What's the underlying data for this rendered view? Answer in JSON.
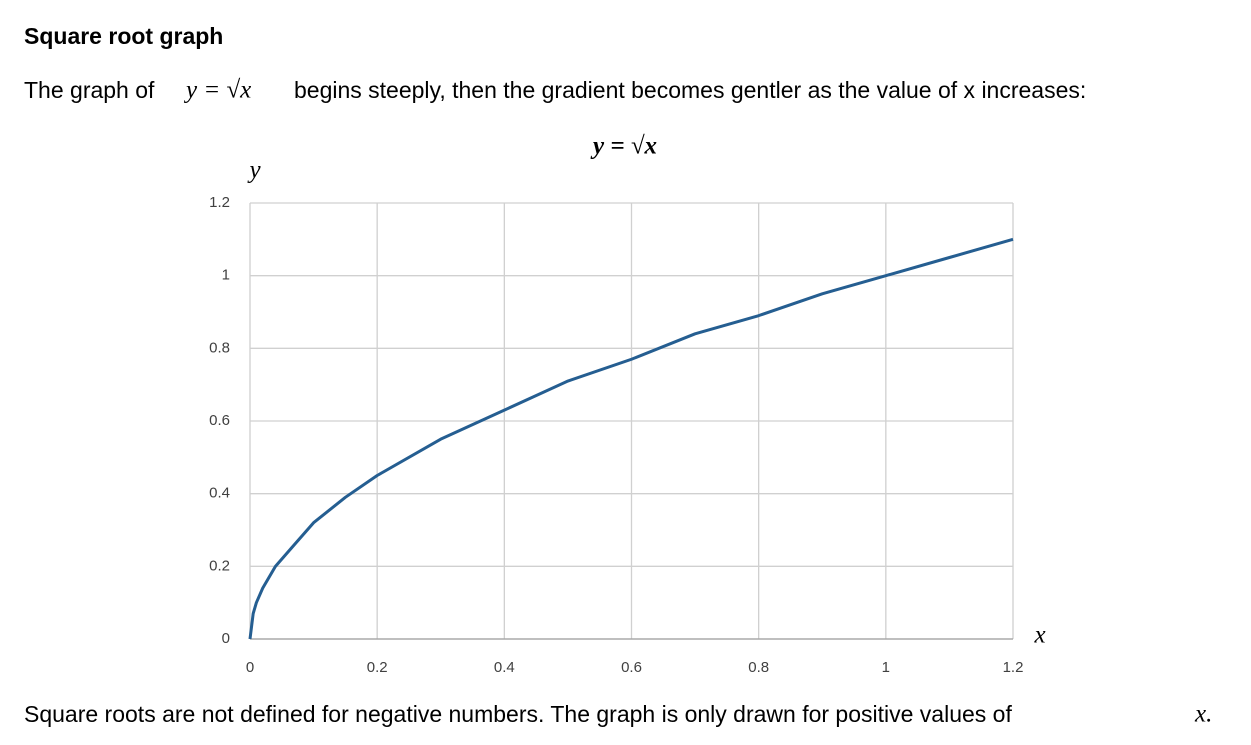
{
  "heading": "Square root graph",
  "intro": {
    "before": "The graph of",
    "math": "y = √x",
    "after": "begins steeply, then the gradient becomes gentler as the value of x increases:"
  },
  "footer": {
    "text": "Square roots are not defined for negative numbers.  The graph is only drawn for positive values of",
    "math": "x."
  },
  "chart_data": {
    "type": "line",
    "title": "y = √x",
    "x_label": "x",
    "y_label": "y",
    "x": [
      0,
      0.005,
      0.01,
      0.02,
      0.04,
      0.07,
      0.1,
      0.15,
      0.2,
      0.3,
      0.4,
      0.5,
      0.6,
      0.7,
      0.8,
      0.9,
      1,
      1.1,
      1.2
    ],
    "values": [
      0,
      0.07,
      0.1,
      0.14,
      0.2,
      0.26,
      0.32,
      0.39,
      0.45,
      0.55,
      0.63,
      0.71,
      0.77,
      0.84,
      0.89,
      0.95,
      1,
      1.05,
      1.1
    ],
    "color": "#255e91",
    "xlim": [
      0,
      1.2
    ],
    "ylim": [
      0,
      1.2
    ],
    "xticks": [
      0,
      0.2,
      0.4,
      0.6,
      0.8,
      1,
      1.2
    ],
    "yticks": [
      0,
      0.2,
      0.4,
      0.6,
      0.8,
      1,
      1.2
    ],
    "grid": true
  }
}
